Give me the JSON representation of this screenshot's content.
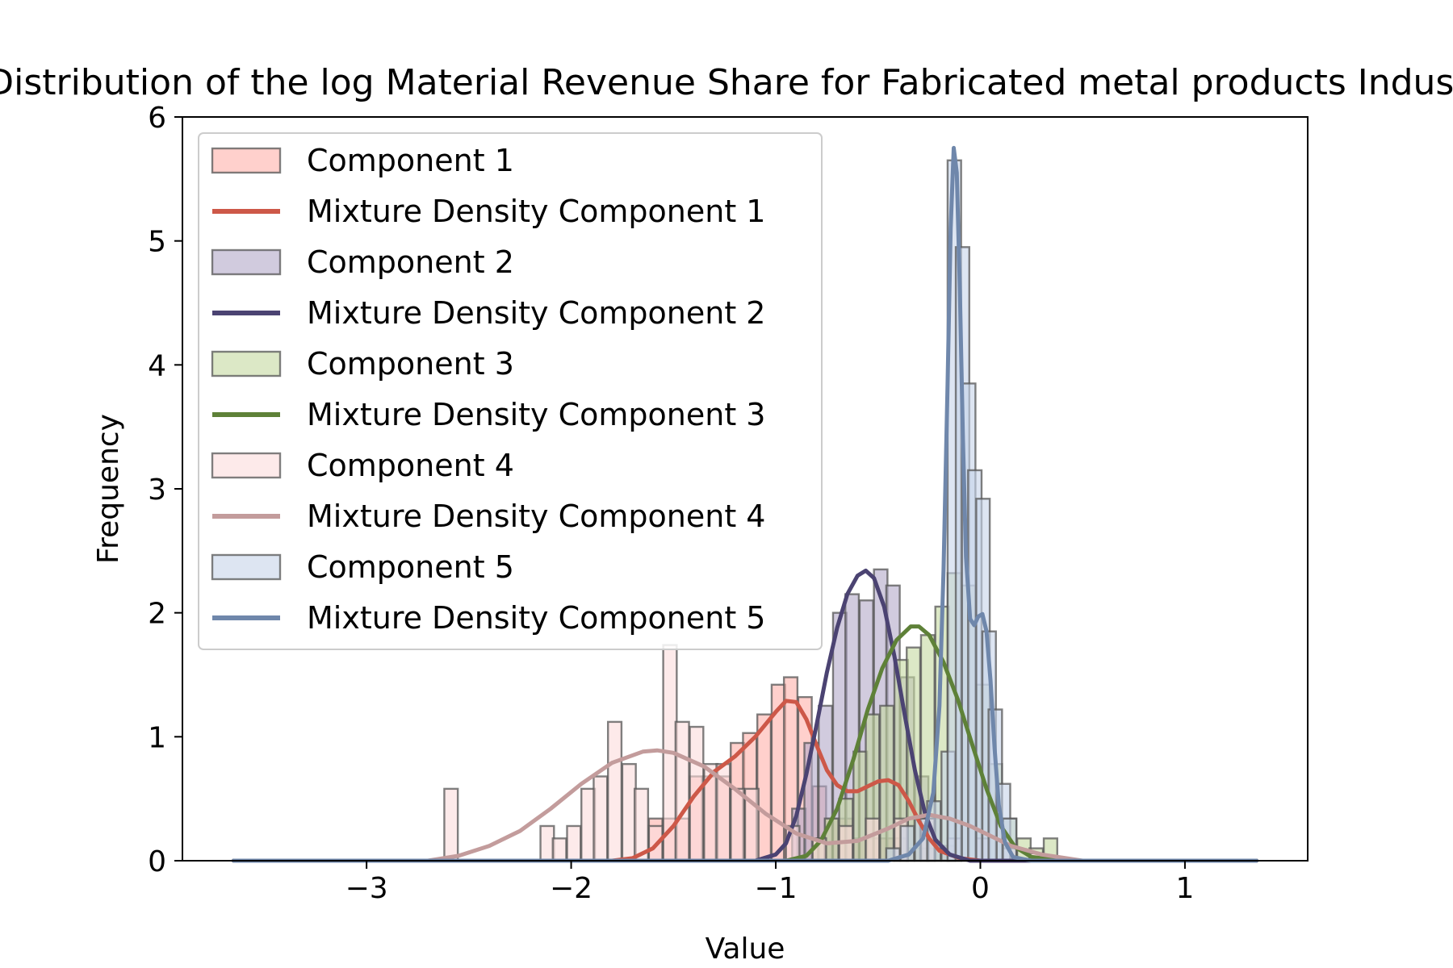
{
  "chart_data": {
    "type": "histogram",
    "title": "Distribution of the log Material Revenue Share for Fabricated metal products Industry",
    "xlabel": "Value",
    "ylabel": "Frequency",
    "xlim": [
      -3.9,
      1.6
    ],
    "ylim": [
      0,
      6
    ],
    "xticks": [
      -3,
      -2,
      -1,
      0,
      1
    ],
    "yticks": [
      0,
      1,
      2,
      3,
      4,
      5,
      6
    ],
    "xtick_labels": [
      "−3",
      "−2",
      "−1",
      "0",
      "1"
    ],
    "ytick_labels": [
      "0",
      "1",
      "2",
      "3",
      "4",
      "5",
      "6"
    ],
    "grid": false,
    "legend_position": "upper-left",
    "bin_width": 0.066,
    "density_x_range": [
      -3.65,
      1.35
    ],
    "series": [
      {
        "name": "Component 1",
        "density_name": "Mixture Density Component 1",
        "fill": "#ffb0aa",
        "line": "#cd5848",
        "bins": [
          [
            -1.62,
            0.34
          ],
          [
            -1.55,
            0.34
          ],
          [
            -1.49,
            0.34
          ],
          [
            -1.42,
            0.68
          ],
          [
            -1.36,
            0.68
          ],
          [
            -1.29,
            0.68
          ],
          [
            -1.22,
            0.95
          ],
          [
            -1.16,
            1.03
          ],
          [
            -1.09,
            1.18
          ],
          [
            -1.02,
            1.42
          ],
          [
            -0.96,
            1.48
          ],
          [
            -0.89,
            1.32
          ],
          [
            -0.82,
            0.6
          ],
          [
            -0.76,
            0.34
          ],
          [
            -0.69,
            0.34
          ],
          [
            -0.62,
            0.18
          ],
          [
            -0.56,
            0.18
          ],
          [
            -0.49,
            0.18
          ],
          [
            -0.42,
            0.18
          ],
          [
            -0.36,
            0.1
          ],
          [
            -0.29,
            0.1
          ],
          [
            -0.22,
            0.1
          ]
        ],
        "density": [
          [
            -3.65,
            0
          ],
          [
            -1.8,
            0
          ],
          [
            -1.7,
            0.02
          ],
          [
            -1.6,
            0.1
          ],
          [
            -1.5,
            0.28
          ],
          [
            -1.4,
            0.52
          ],
          [
            -1.3,
            0.72
          ],
          [
            -1.2,
            0.84
          ],
          [
            -1.1,
            1.0
          ],
          [
            -1.0,
            1.2
          ],
          [
            -0.95,
            1.29
          ],
          [
            -0.9,
            1.28
          ],
          [
            -0.85,
            1.14
          ],
          [
            -0.8,
            0.93
          ],
          [
            -0.75,
            0.73
          ],
          [
            -0.7,
            0.61
          ],
          [
            -0.65,
            0.56
          ],
          [
            -0.6,
            0.56
          ],
          [
            -0.55,
            0.6
          ],
          [
            -0.5,
            0.64
          ],
          [
            -0.45,
            0.65
          ],
          [
            -0.4,
            0.61
          ],
          [
            -0.35,
            0.48
          ],
          [
            -0.3,
            0.32
          ],
          [
            -0.25,
            0.18
          ],
          [
            -0.2,
            0.08
          ],
          [
            -0.1,
            0.02
          ],
          [
            0.0,
            0
          ],
          [
            1.35,
            0
          ]
        ]
      },
      {
        "name": "Component 2",
        "density_name": "Mixture Density Component 2",
        "fill": "#b2a8c8",
        "line": "#4b4372",
        "bins": [
          [
            -0.92,
            0.42
          ],
          [
            -0.86,
            0.95
          ],
          [
            -0.79,
            1.25
          ],
          [
            -0.72,
            2.0
          ],
          [
            -0.66,
            2.15
          ],
          [
            -0.59,
            2.1
          ],
          [
            -0.52,
            2.35
          ],
          [
            -0.46,
            2.22
          ],
          [
            -0.39,
            1.48
          ],
          [
            -0.32,
            0.68
          ],
          [
            -0.26,
            0.34
          ],
          [
            -0.19,
            0.12
          ]
        ],
        "density": [
          [
            -3.65,
            0
          ],
          [
            -1.1,
            0
          ],
          [
            -1.0,
            0.05
          ],
          [
            -0.95,
            0.14
          ],
          [
            -0.9,
            0.36
          ],
          [
            -0.85,
            0.7
          ],
          [
            -0.8,
            1.1
          ],
          [
            -0.75,
            1.52
          ],
          [
            -0.7,
            1.88
          ],
          [
            -0.65,
            2.15
          ],
          [
            -0.6,
            2.3
          ],
          [
            -0.56,
            2.34
          ],
          [
            -0.52,
            2.28
          ],
          [
            -0.47,
            2.05
          ],
          [
            -0.42,
            1.65
          ],
          [
            -0.37,
            1.18
          ],
          [
            -0.32,
            0.73
          ],
          [
            -0.27,
            0.38
          ],
          [
            -0.22,
            0.17
          ],
          [
            -0.15,
            0.05
          ],
          [
            -0.05,
            0
          ],
          [
            1.35,
            0
          ]
        ]
      },
      {
        "name": "Component 3",
        "density_name": "Mixture Density Component 3",
        "fill": "#c4d9a0",
        "line": "#5e8138",
        "bins": [
          [
            -0.82,
            0.18
          ],
          [
            -0.76,
            0.34
          ],
          [
            -0.69,
            0.5
          ],
          [
            -0.62,
            0.88
          ],
          [
            -0.56,
            1.18
          ],
          [
            -0.49,
            1.25
          ],
          [
            -0.42,
            1.62
          ],
          [
            -0.36,
            1.72
          ],
          [
            -0.29,
            1.82
          ],
          [
            -0.22,
            2.05
          ],
          [
            -0.16,
            2.32
          ],
          [
            -0.09,
            2.22
          ],
          [
            -0.02,
            1.42
          ],
          [
            0.04,
            0.78
          ],
          [
            0.11,
            0.34
          ],
          [
            0.18,
            0.18
          ],
          [
            0.24,
            0.1
          ],
          [
            0.31,
            0.18
          ]
        ],
        "density": [
          [
            -3.65,
            0
          ],
          [
            -0.95,
            0
          ],
          [
            -0.85,
            0.04
          ],
          [
            -0.78,
            0.16
          ],
          [
            -0.7,
            0.42
          ],
          [
            -0.62,
            0.82
          ],
          [
            -0.55,
            1.22
          ],
          [
            -0.48,
            1.55
          ],
          [
            -0.41,
            1.78
          ],
          [
            -0.34,
            1.89
          ],
          [
            -0.3,
            1.89
          ],
          [
            -0.25,
            1.82
          ],
          [
            -0.18,
            1.6
          ],
          [
            -0.11,
            1.3
          ],
          [
            -0.04,
            0.94
          ],
          [
            0.03,
            0.58
          ],
          [
            0.1,
            0.28
          ],
          [
            0.17,
            0.11
          ],
          [
            0.25,
            0.03
          ],
          [
            0.4,
            0
          ],
          [
            1.35,
            0
          ]
        ]
      },
      {
        "name": "Component 4",
        "density_name": "Mixture Density Component 4",
        "fill": "#fbdcdc",
        "line": "#c39c9c",
        "bins": [
          [
            -2.62,
            0.58
          ],
          [
            -2.15,
            0.28
          ],
          [
            -2.09,
            0.18
          ],
          [
            -2.02,
            0.28
          ],
          [
            -1.95,
            0.58
          ],
          [
            -1.89,
            0.68
          ],
          [
            -1.82,
            1.12
          ],
          [
            -1.75,
            0.78
          ],
          [
            -1.69,
            0.58
          ],
          [
            -1.62,
            0.28
          ],
          [
            -1.55,
            1.74
          ],
          [
            -1.49,
            1.12
          ],
          [
            -1.42,
            1.08
          ],
          [
            -1.35,
            0.78
          ],
          [
            -1.29,
            0.78
          ],
          [
            -1.22,
            0.58
          ],
          [
            -1.15,
            0.58
          ],
          [
            -0.95,
            0.28
          ],
          [
            -0.82,
            0.18
          ],
          [
            -0.69,
            0.28
          ],
          [
            -0.56,
            0.34
          ],
          [
            -0.42,
            0.34
          ],
          [
            -0.29,
            0.34
          ],
          [
            -0.16,
            0.18
          ],
          [
            -0.02,
            0.18
          ],
          [
            0.11,
            0.1
          ],
          [
            0.24,
            0.06
          ]
        ],
        "density": [
          [
            -3.65,
            0
          ],
          [
            -2.7,
            0
          ],
          [
            -2.55,
            0.04
          ],
          [
            -2.4,
            0.12
          ],
          [
            -2.25,
            0.24
          ],
          [
            -2.1,
            0.42
          ],
          [
            -1.95,
            0.62
          ],
          [
            -1.8,
            0.79
          ],
          [
            -1.65,
            0.88
          ],
          [
            -1.58,
            0.89
          ],
          [
            -1.5,
            0.87
          ],
          [
            -1.35,
            0.76
          ],
          [
            -1.2,
            0.58
          ],
          [
            -1.05,
            0.38
          ],
          [
            -0.9,
            0.22
          ],
          [
            -0.75,
            0.14
          ],
          [
            -0.6,
            0.16
          ],
          [
            -0.45,
            0.26
          ],
          [
            -0.35,
            0.34
          ],
          [
            -0.25,
            0.37
          ],
          [
            -0.15,
            0.34
          ],
          [
            -0.05,
            0.28
          ],
          [
            0.05,
            0.2
          ],
          [
            0.15,
            0.12
          ],
          [
            0.3,
            0.05
          ],
          [
            0.5,
            0
          ],
          [
            1.35,
            0
          ]
        ]
      },
      {
        "name": "Component 5",
        "density_name": "Mixture Density Component 5",
        "fill": "#c7d3ea",
        "line": "#6f87ab",
        "bins": [
          [
            -0.46,
            0.1
          ],
          [
            -0.39,
            0.28
          ],
          [
            -0.32,
            0.34
          ],
          [
            -0.26,
            0.48
          ],
          [
            -0.19,
            0.88
          ],
          [
            -0.16,
            5.65
          ],
          [
            -0.12,
            4.95
          ],
          [
            -0.09,
            3.85
          ],
          [
            -0.06,
            3.15
          ],
          [
            -0.02,
            2.92
          ],
          [
            0.01,
            1.85
          ],
          [
            0.04,
            1.22
          ],
          [
            0.08,
            0.62
          ],
          [
            0.11,
            0.34
          ]
        ],
        "density": [
          [
            -3.65,
            0
          ],
          [
            -0.45,
            0
          ],
          [
            -0.35,
            0.05
          ],
          [
            -0.28,
            0.18
          ],
          [
            -0.23,
            0.55
          ],
          [
            -0.2,
            1.25
          ],
          [
            -0.18,
            2.35
          ],
          [
            -0.16,
            3.85
          ],
          [
            -0.145,
            5.1
          ],
          [
            -0.13,
            5.75
          ],
          [
            -0.115,
            5.55
          ],
          [
            -0.1,
            4.6
          ],
          [
            -0.085,
            3.4
          ],
          [
            -0.07,
            2.45
          ],
          [
            -0.05,
            1.95
          ],
          [
            -0.03,
            1.9
          ],
          [
            -0.01,
            1.97
          ],
          [
            0.01,
            1.99
          ],
          [
            0.03,
            1.85
          ],
          [
            0.05,
            1.45
          ],
          [
            0.07,
            0.9
          ],
          [
            0.09,
            0.45
          ],
          [
            0.12,
            0.15
          ],
          [
            0.16,
            0.03
          ],
          [
            0.25,
            0
          ],
          [
            1.35,
            0
          ]
        ]
      }
    ]
  }
}
